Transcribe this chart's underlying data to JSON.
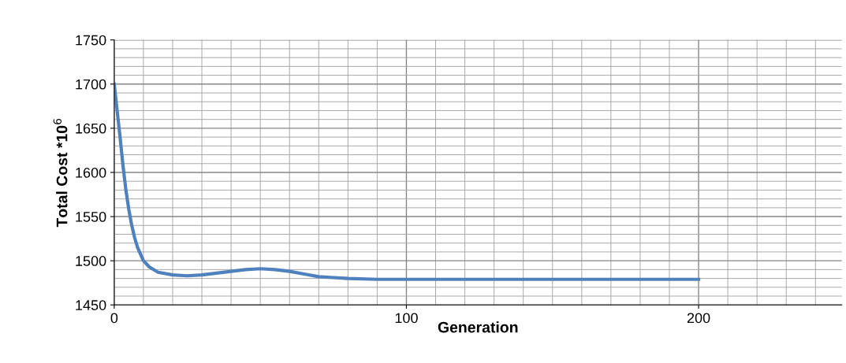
{
  "chart_data": {
    "type": "line",
    "xlabel": "Generation",
    "ylabel": "Total Cost *10$^{6}$",
    "x": [
      0,
      1,
      2,
      3,
      4,
      5,
      6,
      7,
      8,
      10,
      12,
      15,
      20,
      25,
      30,
      35,
      40,
      45,
      50,
      55,
      60,
      65,
      70,
      75,
      80,
      90,
      100,
      120,
      150,
      200
    ],
    "series": [
      {
        "color": "#4f81bd",
        "values": [
          1700,
          1670,
          1640,
          1608,
          1580,
          1558,
          1540,
          1526,
          1515,
          1500,
          1493,
          1487,
          1484,
          1483,
          1484,
          1486,
          1488,
          1490,
          1491,
          1490,
          1488,
          1485,
          1482,
          1481,
          1480,
          1479,
          1479,
          1479,
          1479,
          1479
        ]
      }
    ],
    "xlim": [
      0,
      249
    ],
    "ylim": [
      1450,
      1750
    ],
    "xticks": [
      0,
      100,
      200
    ],
    "yticks": [
      1450,
      1500,
      1550,
      1600,
      1650,
      1700,
      1750
    ],
    "grid": true,
    "marker": "none",
    "line_style": "solid",
    "legend": false
  }
}
